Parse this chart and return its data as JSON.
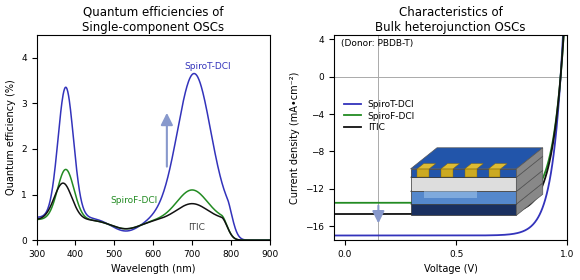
{
  "left_title": "Quantum efficiencies of\nSingle-component OSCs",
  "right_title": "Characteristics of\nBulk heterojunction OSCs",
  "left_xlabel": "Wavelength (nm)",
  "left_ylabel": "Quantum efficiency (%)",
  "right_xlabel": "Voltage (V)",
  "right_ylabel": "Current density (mA•cm⁻²)",
  "left_xlim": [
    300,
    900
  ],
  "left_ylim": [
    0,
    4.5
  ],
  "right_xlim": [
    -0.05,
    1.0
  ],
  "right_ylim": [
    -17.5,
    4.5
  ],
  "spiro_t_color": "#3333bb",
  "spiro_f_color": "#228B22",
  "itic_color": "#111111",
  "arrow_color": "#8899cc",
  "donor_text": "(Donor: PBDB-T)",
  "legend_labels": [
    "SpiroT-DCI",
    "SpiroF-DCI",
    "ITIC"
  ]
}
